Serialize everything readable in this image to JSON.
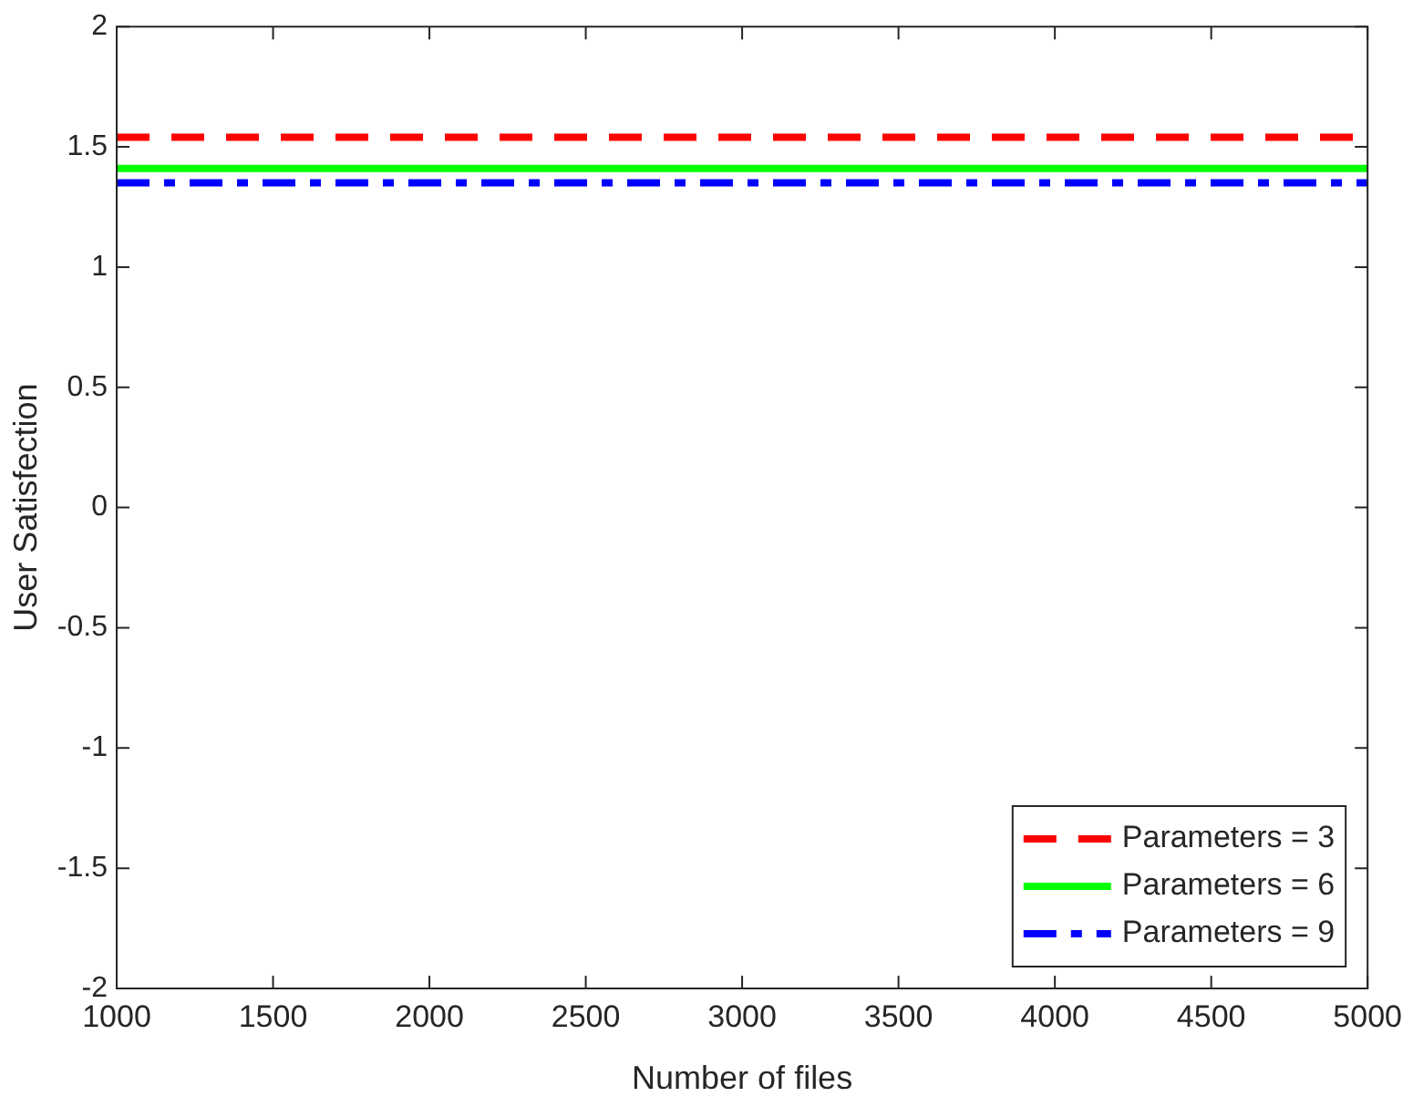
{
  "chart_data": {
    "type": "line",
    "xlabel": "Number of files",
    "ylabel": "User Satisfection",
    "x": [
      1000,
      5000
    ],
    "series": [
      {
        "name": "Parameters = 3",
        "color": "#ff0000",
        "values": [
          1.54,
          1.54
        ],
        "line_style": "dashed"
      },
      {
        "name": "Parameters = 6",
        "color": "#00ff00",
        "values": [
          1.41,
          1.41
        ],
        "line_style": "solid"
      },
      {
        "name": "Parameters = 9",
        "color": "#0000ff",
        "values": [
          1.35,
          1.35
        ],
        "line_style": "dashdot"
      }
    ],
    "xlim": [
      1000,
      5000
    ],
    "xticks": [
      1000,
      1500,
      2000,
      2500,
      3000,
      3500,
      4000,
      4500,
      5000
    ],
    "ylim": [
      -2,
      2
    ],
    "yticks": [
      -2,
      -1.5,
      -1,
      -0.5,
      0,
      0.5,
      1,
      1.5,
      2
    ],
    "grid": false,
    "legend": "bottom right",
    "marker": "none"
  }
}
